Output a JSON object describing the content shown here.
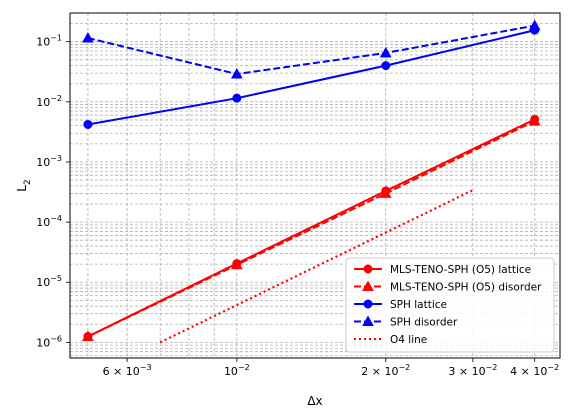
{
  "chart_data": {
    "type": "line",
    "xscale": "log",
    "yscale": "log",
    "xlabel": "Δx",
    "ylabel": "L",
    "ylabel_sub": "2",
    "xlim": [
      0.0046,
      0.045
    ],
    "ylim": [
      5.5e-07,
      0.3
    ],
    "grid": "major and minor, dashed",
    "legend_position": "lower-right",
    "x_ticks": [
      {
        "value": 0.006,
        "mant": "6 × 10",
        "exp": "−3"
      },
      {
        "value": 0.01,
        "mant": "10",
        "exp": "−2"
      },
      {
        "value": 0.02,
        "mant": "2 × 10",
        "exp": "−2"
      },
      {
        "value": 0.03,
        "mant": "3 × 10",
        "exp": "−2"
      },
      {
        "value": 0.04,
        "mant": "4 × 10",
        "exp": "−2"
      }
    ],
    "y_ticks": [
      {
        "value": 1e-06,
        "mant": "10",
        "exp": "−6"
      },
      {
        "value": 1e-05,
        "mant": "10",
        "exp": "−5"
      },
      {
        "value": 0.0001,
        "mant": "10",
        "exp": "−4"
      },
      {
        "value": 0.001,
        "mant": "10",
        "exp": "−3"
      },
      {
        "value": 0.01,
        "mant": "10",
        "exp": "−2"
      },
      {
        "value": 0.1,
        "mant": "10",
        "exp": "−1"
      }
    ],
    "series": [
      {
        "name": "MLS-TENO-SPH (O5) lattice",
        "color": "#ff0000",
        "dash": "solid",
        "marker": "circle",
        "x": [
          0.005,
          0.01,
          0.02,
          0.04
        ],
        "y": [
          1.25e-06,
          2.05e-05,
          0.00033,
          0.0051
        ]
      },
      {
        "name": "MLS-TENO-SPH (O5) disorder",
        "color": "#ff0000",
        "dash": "dashed",
        "marker": "triangle",
        "x": [
          0.005,
          0.01,
          0.02,
          0.04
        ],
        "y": [
          1.25e-06,
          1.95e-05,
          0.0003,
          0.0048
        ]
      },
      {
        "name": "SPH lattice",
        "color": "#0000ff",
        "dash": "solid",
        "marker": "circle",
        "x": [
          0.005,
          0.01,
          0.02,
          0.04
        ],
        "y": [
          0.0042,
          0.0115,
          0.04,
          0.155
        ]
      },
      {
        "name": "SPH disorder",
        "color": "#0000ff",
        "dash": "dashed",
        "marker": "triangle",
        "x": [
          0.005,
          0.01,
          0.02,
          0.04
        ],
        "y": [
          0.115,
          0.029,
          0.065,
          0.185
        ]
      },
      {
        "name": "O4 line",
        "color": "#ff0000",
        "dash": "dotted",
        "marker": "none",
        "x": [
          0.007,
          0.03
        ],
        "y": [
          1e-06,
          0.00034
        ]
      }
    ]
  }
}
